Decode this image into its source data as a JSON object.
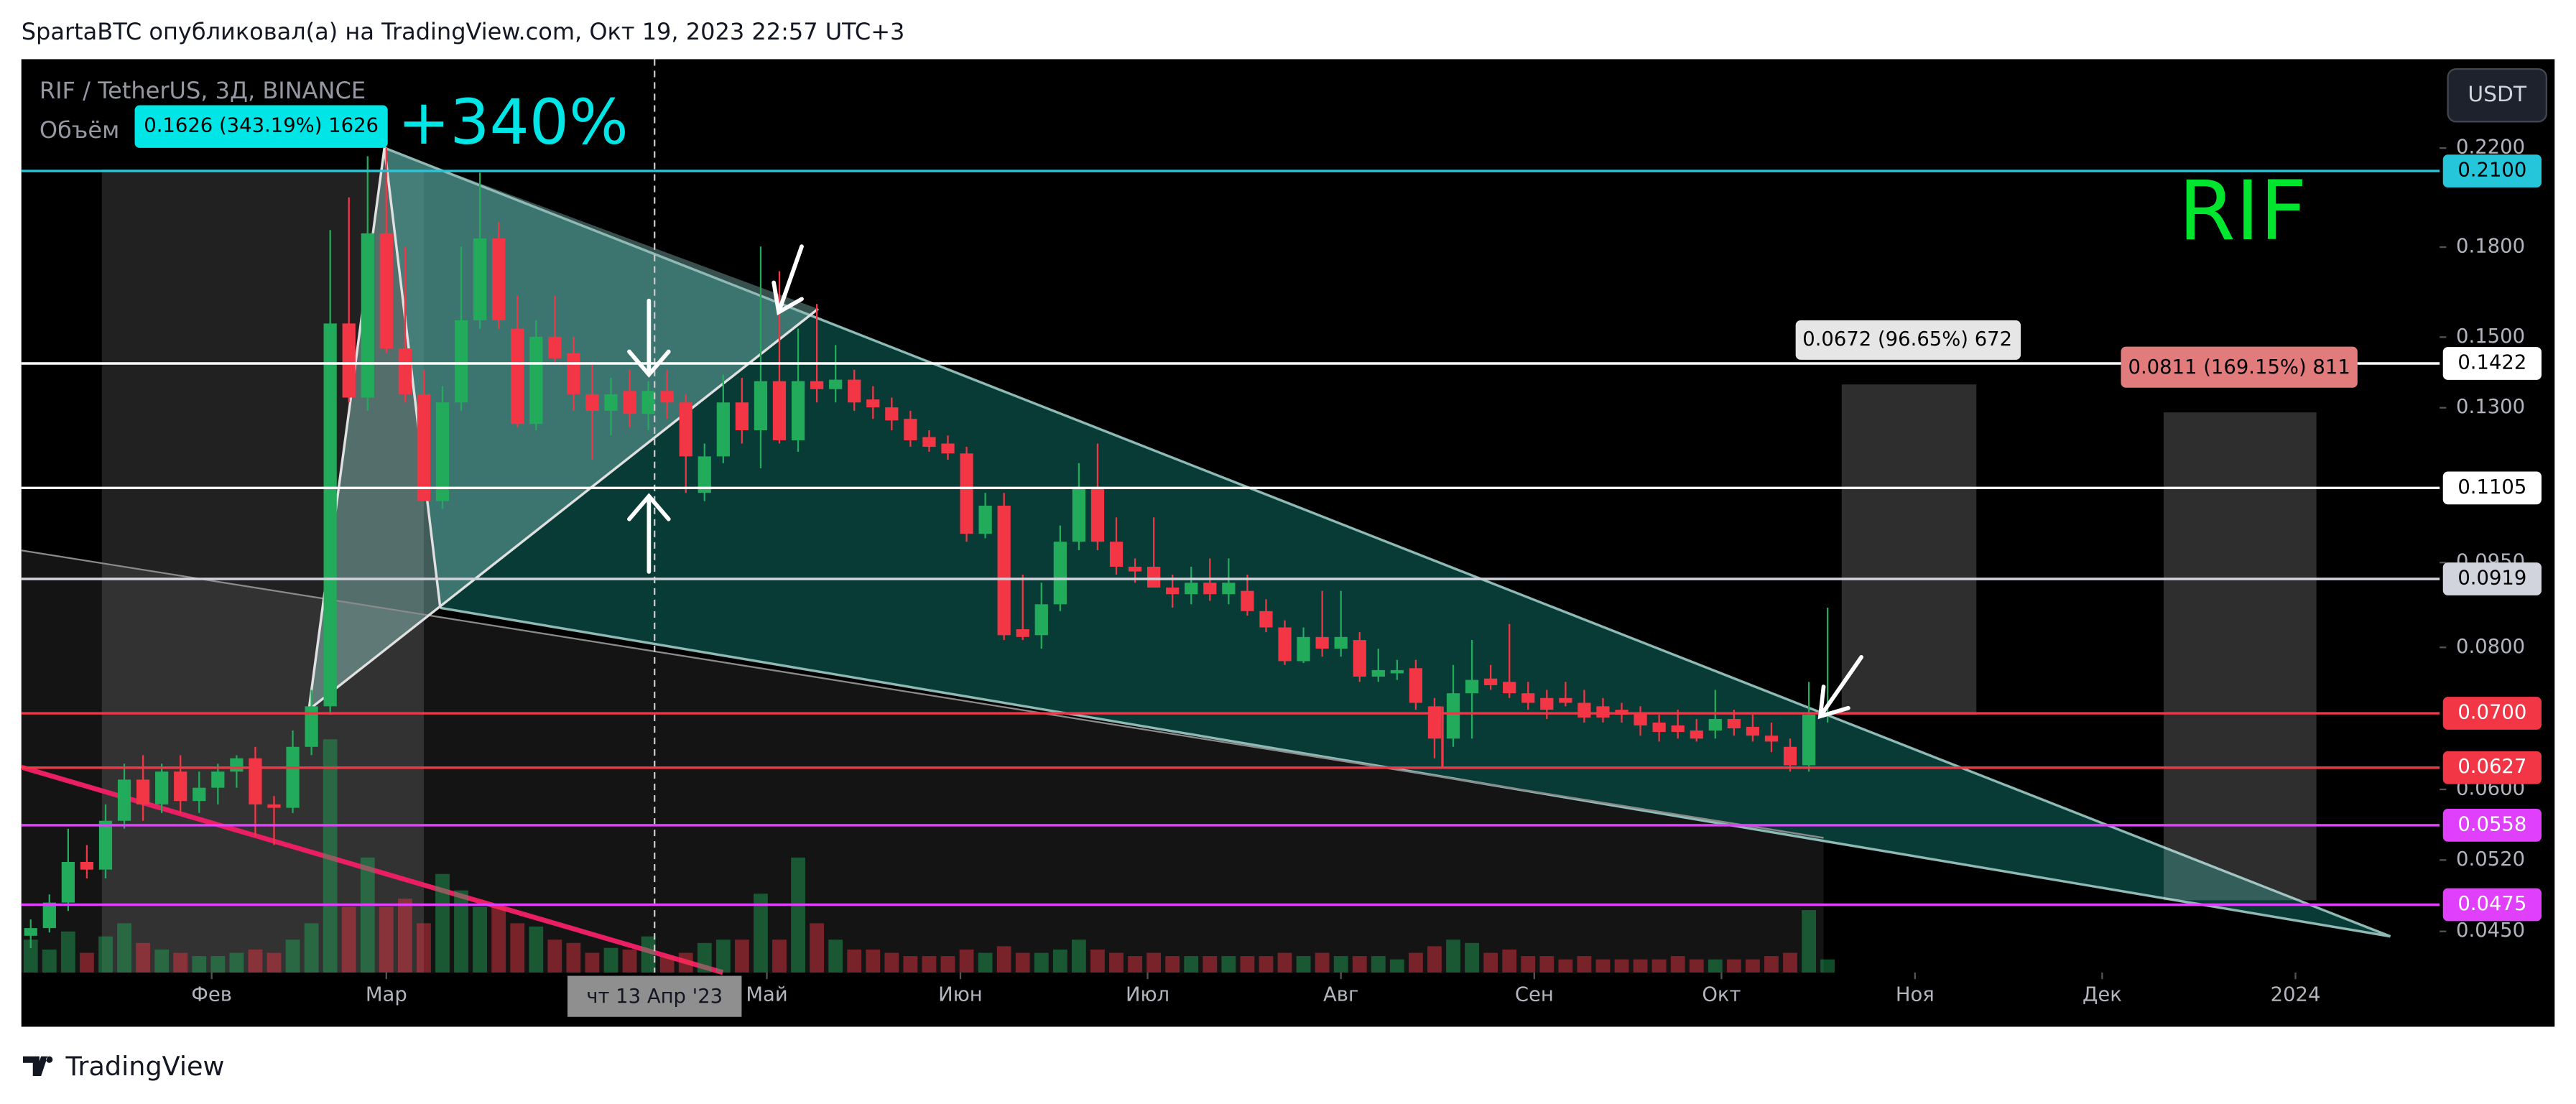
{
  "header": {
    "text": "SpartaBTC опубликовал(а) на TradingView.com, Окт 19, 2023 22:57 UTC+3"
  },
  "chart_data": {
    "type": "candlestick",
    "symbol": "RIF / TetherUS, 3Д, BINANCE",
    "volume_label": "Объём",
    "currency": "USDT",
    "log_scale": true,
    "up_color": "#22ab5b",
    "down_color": "#f23645",
    "open": [
      0.0446,
      0.0453,
      0.0477,
      0.0518,
      0.051,
      0.0563,
      0.0612,
      0.0582,
      0.0622,
      0.0586,
      0.0602,
      0.0622,
      0.0639,
      0.0582,
      0.0578,
      0.0654,
      0.071,
      0.1542,
      0.1327,
      0.1851,
      0.1466,
      0.1336,
      0.1076,
      0.1314,
      0.1552,
      0.1832,
      0.1526,
      0.1258,
      0.1501,
      0.1452,
      0.1336,
      0.1292,
      0.1345,
      0.1284,
      0.1345,
      0.1314,
      0.1094,
      0.1178,
      0.1314,
      0.1242,
      0.1372,
      0.1217,
      0.1372,
      0.135,
      0.1376,
      0.1322,
      0.1301,
      0.1271,
      0.1225,
      0.1209,
      0.1185,
      0.1007,
      0.1066,
      0.083,
      0.082,
      0.0873,
      0.0991,
      0.1105,
      0.0991,
      0.0942,
      0.0942,
      0.0903,
      0.0891,
      0.0912,
      0.0891,
      0.0897,
      0.0861,
      0.0833,
      0.0778,
      0.0817,
      0.0798,
      0.0812,
      0.0754,
      0.0759,
      0.0767,
      0.071,
      0.0665,
      0.0729,
      0.0751,
      0.0746,
      0.0729,
      0.0722,
      0.0722,
      0.0715,
      0.071,
      0.0705,
      0.0701,
      0.0687,
      0.0683,
      0.0676,
      0.0676,
      0.0692,
      0.0681,
      0.0669,
      0.0654,
      0.063,
      0.0698
    ],
    "high": [
      0.0461,
      0.0485,
      0.0554,
      0.0536,
      0.0582,
      0.0632,
      0.0643,
      0.0632,
      0.0643,
      0.0622,
      0.0632,
      0.0643,
      0.0654,
      0.0592,
      0.0676,
      0.0734,
      0.1863,
      0.1991,
      0.2164,
      0.22,
      0.1802,
      0.1404,
      0.1358,
      0.1802,
      0.2093,
      0.1894,
      0.1631,
      0.1552,
      0.1631,
      0.1501,
      0.1428,
      0.1381,
      0.1404,
      0.1372,
      0.1404,
      0.1336,
      0.1209,
      0.139,
      0.1381,
      0.1802,
      0.1714,
      0.1526,
      0.1604,
      0.1476,
      0.1404,
      0.1358,
      0.1327,
      0.1292,
      0.1242,
      0.1229,
      0.1201,
      0.1094,
      0.1094,
      0.0927,
      0.0912,
      0.1024,
      0.1162,
      0.1209,
      0.1041,
      0.0958,
      0.1041,
      0.0927,
      0.0942,
      0.0958,
      0.0958,
      0.0927,
      0.0882,
      0.0845,
      0.0833,
      0.0897,
      0.0897,
      0.0825,
      0.0798,
      0.078,
      0.078,
      0.0722,
      0.0772,
      0.0812,
      0.0772,
      0.0839,
      0.0746,
      0.0734,
      0.0746,
      0.0734,
      0.0722,
      0.0715,
      0.071,
      0.0698,
      0.0705,
      0.0692,
      0.0734,
      0.0705,
      0.0698,
      0.0687,
      0.0665,
      0.0746,
      0.0867
    ],
    "low": [
      0.0435,
      0.0449,
      0.0469,
      0.0501,
      0.0501,
      0.0554,
      0.0563,
      0.0572,
      0.0572,
      0.0572,
      0.0582,
      0.0602,
      0.0545,
      0.0536,
      0.0572,
      0.0643,
      0.0698,
      0.1314,
      0.1292,
      0.1452,
      0.1314,
      0.108,
      0.1059,
      0.1292,
      0.1526,
      0.1526,
      0.125,
      0.1242,
      0.1418,
      0.1292,
      0.117,
      0.1229,
      0.125,
      0.1242,
      0.1271,
      0.1094,
      0.1076,
      0.1162,
      0.1209,
      0.115,
      0.1209,
      0.1189,
      0.1314,
      0.1314,
      0.1292,
      0.1271,
      0.1242,
      0.1201,
      0.1189,
      0.117,
      0.0991,
      0.0998,
      0.0812,
      0.0812,
      0.0798,
      0.0861,
      0.0974,
      0.0974,
      0.0927,
      0.0912,
      0.0903,
      0.0867,
      0.0873,
      0.0879,
      0.0873,
      0.0853,
      0.0825,
      0.0772,
      0.0775,
      0.0785,
      0.0785,
      0.0746,
      0.0746,
      0.0749,
      0.0705,
      0.0639,
      0.0654,
      0.0665,
      0.0734,
      0.0722,
      0.0705,
      0.0692,
      0.071,
      0.0687,
      0.0687,
      0.0687,
      0.0669,
      0.0661,
      0.0665,
      0.0661,
      0.0665,
      0.0669,
      0.0661,
      0.0647,
      0.0622,
      0.0622,
      0.0687
    ],
    "close": [
      0.0453,
      0.0477,
      0.0518,
      0.051,
      0.0563,
      0.0612,
      0.0582,
      0.0622,
      0.0586,
      0.0602,
      0.0622,
      0.0639,
      0.0582,
      0.0578,
      0.0654,
      0.071,
      0.1542,
      0.1327,
      0.1851,
      0.1466,
      0.1336,
      0.1076,
      0.1314,
      0.1552,
      0.1832,
      0.1552,
      0.1258,
      0.1501,
      0.1437,
      0.1336,
      0.1292,
      0.1336,
      0.1284,
      0.1345,
      0.1314,
      0.1178,
      0.1178,
      0.1314,
      0.1242,
      0.1372,
      0.1217,
      0.1372,
      0.135,
      0.1376,
      0.1314,
      0.1301,
      0.1267,
      0.1217,
      0.1201,
      0.1185,
      0.1007,
      0.1066,
      0.082,
      0.0817,
      0.0873,
      0.0991,
      0.1105,
      0.0991,
      0.0942,
      0.0933,
      0.0903,
      0.0891,
      0.0912,
      0.0891,
      0.0912,
      0.0861,
      0.0833,
      0.0778,
      0.0817,
      0.0798,
      0.0817,
      0.0754,
      0.0764,
      0.0764,
      0.0715,
      0.0665,
      0.0729,
      0.0749,
      0.0741,
      0.0729,
      0.0715,
      0.0705,
      0.0715,
      0.0694,
      0.0694,
      0.0698,
      0.0683,
      0.0674,
      0.0674,
      0.0665,
      0.0692,
      0.0679,
      0.0669,
      0.0661,
      0.063,
      0.0698,
      0.0701
    ],
    "volume": [
      20,
      14,
      25,
      12,
      22,
      30,
      18,
      14,
      12,
      10,
      10,
      12,
      14,
      12,
      20,
      30,
      142,
      40,
      70,
      40,
      45,
      30,
      60,
      50,
      40,
      40,
      30,
      28,
      20,
      18,
      12,
      15,
      14,
      22,
      10,
      12,
      18,
      20,
      20,
      48,
      20,
      70,
      30,
      20,
      14,
      14,
      12,
      10,
      10,
      10,
      14,
      12,
      16,
      12,
      12,
      14,
      20,
      14,
      12,
      10,
      12,
      10,
      10,
      10,
      10,
      10,
      10,
      12,
      10,
      12,
      10,
      10,
      10,
      8,
      12,
      16,
      20,
      18,
      12,
      14,
      10,
      10,
      8,
      10,
      8,
      8,
      8,
      8,
      10,
      8,
      8,
      8,
      8,
      10,
      12,
      38,
      8
    ],
    "volume_lim": [
      0,
      556
    ],
    "ylim": [
      0.0414,
      0.2634
    ],
    "yticks": [
      {
        "value": 0.22,
        "label": "0.2200"
      },
      {
        "value": 0.18,
        "label": "0.1800"
      },
      {
        "value": 0.15,
        "label": "0.1500"
      },
      {
        "value": 0.13,
        "label": "0.1300"
      },
      {
        "value": 0.095,
        "label": "0.0950"
      },
      {
        "value": 0.08,
        "label": "0.0800"
      },
      {
        "value": 0.06,
        "label": "0.0600"
      },
      {
        "value": 0.052,
        "label": "0.0520"
      },
      {
        "value": 0.045,
        "label": "0.0450"
      }
    ],
    "xlim": [
      -0.5,
      128.7
    ],
    "xticks": [
      {
        "value": 9.667,
        "label": "Фев"
      },
      {
        "value": 19,
        "label": "Мар"
      },
      {
        "value": 39.33,
        "label": "Май"
      },
      {
        "value": 49.67,
        "label": "Июн"
      },
      {
        "value": 59.67,
        "label": "Июл"
      },
      {
        "value": 70,
        "label": "Авг"
      },
      {
        "value": 80.33,
        "label": "Сен"
      },
      {
        "value": 90.33,
        "label": "Окт"
      },
      {
        "value": 100.67,
        "label": "Ноя"
      },
      {
        "value": 110.67,
        "label": "Дек"
      },
      {
        "value": 121,
        "label": "2024"
      }
    ],
    "crosshair": {
      "value": 33.33,
      "label": "чт 13 Апр '23"
    },
    "price_lines": [
      {
        "value": 0.21,
        "label": "0.2100",
        "color": "#26c6da",
        "text_color": "#000000"
      },
      {
        "value": 0.1422,
        "label": "0.1422",
        "color": "#ffffff",
        "text_color": "#000000"
      },
      {
        "value": 0.1105,
        "label": "0.1105",
        "color": "#ffffff",
        "text_color": "#000000"
      },
      {
        "value": 0.0919,
        "label": "0.0919",
        "color": "#d1d4dc",
        "text_color": "#000000"
      },
      {
        "value": 0.07,
        "label": "0.0700",
        "color": "#f23645",
        "text_color": "#ffffff"
      },
      {
        "value": 0.0627,
        "label": "0.0627",
        "color": "#f23645",
        "text_color": "#ffffff"
      },
      {
        "value": 0.0558,
        "label": "0.0558",
        "color": "#e040fb",
        "text_color": "#ffffff"
      },
      {
        "value": 0.0475,
        "label": "0.0475",
        "color": "#e040fb",
        "text_color": "#ffffff"
      }
    ],
    "annotations": [
      "0.1626 (343.19%) 1626",
      "+340%",
      "0.0672 (96.65%) 672",
      "0.0811 (169.15%) 811",
      "RIF"
    ]
  },
  "footer": {
    "brand": "TradingView"
  }
}
